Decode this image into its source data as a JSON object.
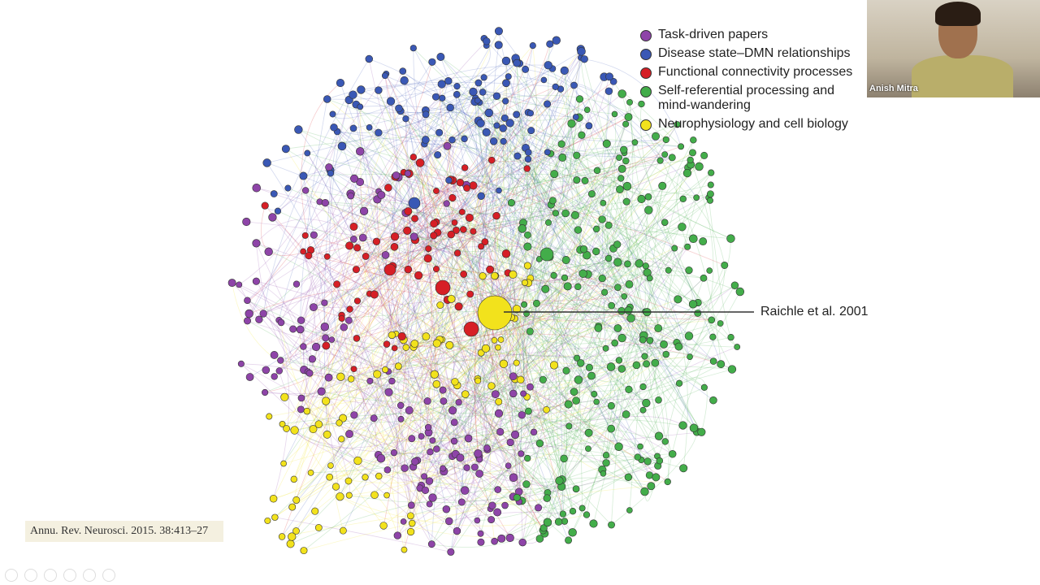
{
  "legend": [
    {
      "label": "Task-driven papers",
      "color": "#8e44a8"
    },
    {
      "label": "Disease state–DMN relationships",
      "color": "#3a58b5"
    },
    {
      "label": "Functional connectivity processes",
      "color": "#d61f26"
    },
    {
      "label": "Self-referential processing and mind-wandering",
      "color": "#43ad4a"
    },
    {
      "label": "Neurophysiology and cell biology",
      "color": "#f2e21c"
    }
  ],
  "annotation": "Raichle et al. 2001",
  "citation": "Annu. Rev. Neurosci. 2015. 38:413–27",
  "webcam": {
    "name": "Anish Mitra"
  }
}
